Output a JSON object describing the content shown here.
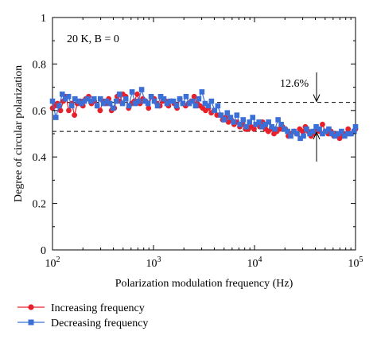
{
  "chart_data": {
    "type": "line",
    "title": "",
    "annotation_condition": "20 K, B = 0",
    "annotation_gap": "12.6%",
    "xlabel": "Polarization modulation frequency (Hz)",
    "ylabel": "Degree of circular polarization",
    "xscale": "log",
    "xlim": [
      100,
      100000
    ],
    "ylim": [
      0,
      1
    ],
    "x_ticks": [
      {
        "base": "10",
        "exp": "2",
        "value": 100
      },
      {
        "base": "10",
        "exp": "3",
        "value": 1000
      },
      {
        "base": "10",
        "exp": "4",
        "value": 10000
      },
      {
        "base": "10",
        "exp": "5",
        "value": 100000
      }
    ],
    "y_ticks": [
      "0",
      "0.2",
      "0.4",
      "0.6",
      "0.8",
      "1"
    ],
    "y_tick_values": [
      0,
      0.2,
      0.4,
      0.6,
      0.8,
      1
    ],
    "grid": false,
    "legend_position": "bottom-left, below plot",
    "reference_lines": [
      0.635,
      0.51
    ],
    "series": [
      {
        "name": "Increasing frequency",
        "color": "#e8202a",
        "marker": "circle",
        "x": [
          100,
          105,
          112,
          120,
          128,
          136,
          145,
          155,
          165,
          176,
          188,
          200,
          214,
          228,
          243,
          260,
          277,
          296,
          316,
          337,
          360,
          384,
          410,
          437,
          466,
          497,
          531,
          567,
          605,
          645,
          689,
          735,
          784,
          837,
          893,
          953,
          1017,
          1085,
          1158,
          1236,
          1319,
          1408,
          1502,
          1603,
          1711,
          1826,
          1948,
          2079,
          2219,
          2368,
          2527,
          2697,
          2878,
          3071,
          3277,
          3497,
          3732,
          3983,
          4250,
          4536,
          4840,
          5165,
          5512,
          5882,
          6277,
          6699,
          7149,
          7629,
          8141,
          8688,
          9272,
          9894,
          10559,
          11268,
          12024,
          12832,
          13693,
          14613,
          15594,
          16641,
          17759,
          18951,
          20224,
          21582,
          23031,
          24578,
          26228,
          27990,
          29869,
          31875,
          34015,
          36300,
          38737,
          41338,
          44114,
          47077,
          50238,
          53612,
          57212,
          61054,
          65154,
          69529,
          74198,
          79181,
          84498,
          90172,
          96228,
          100000
        ],
        "y": [
          0.61,
          0.62,
          0.63,
          0.6,
          0.64,
          0.66,
          0.6,
          0.63,
          0.58,
          0.63,
          0.64,
          0.62,
          0.65,
          0.66,
          0.63,
          0.64,
          0.62,
          0.6,
          0.64,
          0.63,
          0.65,
          0.6,
          0.61,
          0.66,
          0.64,
          0.67,
          0.66,
          0.61,
          0.63,
          0.64,
          0.67,
          0.63,
          0.65,
          0.64,
          0.61,
          0.66,
          0.65,
          0.63,
          0.62,
          0.64,
          0.64,
          0.62,
          0.64,
          0.63,
          0.61,
          0.65,
          0.63,
          0.62,
          0.63,
          0.64,
          0.66,
          0.63,
          0.62,
          0.61,
          0.6,
          0.61,
          0.59,
          0.6,
          0.58,
          0.58,
          0.56,
          0.57,
          0.55,
          0.56,
          0.54,
          0.55,
          0.53,
          0.54,
          0.52,
          0.52,
          0.53,
          0.52,
          0.54,
          0.53,
          0.55,
          0.52,
          0.51,
          0.52,
          0.5,
          0.51,
          0.52,
          0.53,
          0.52,
          0.49,
          0.5,
          0.51,
          0.5,
          0.52,
          0.51,
          0.53,
          0.51,
          0.49,
          0.5,
          0.52,
          0.51,
          0.54,
          0.51,
          0.5,
          0.51,
          0.49,
          0.5,
          0.48,
          0.49,
          0.5,
          0.52,
          0.5,
          0.51,
          0.52
        ]
      },
      {
        "name": "Decreasing frequency",
        "color": "#3b6fd8",
        "marker": "square",
        "x": [
          100,
          108,
          116,
          125,
          134,
          144,
          155,
          167,
          179,
          193,
          207,
          223,
          240,
          258,
          277,
          298,
          320,
          344,
          370,
          398,
          428,
          460,
          494,
          532,
          572,
          614,
          660,
          710,
          763,
          820,
          882,
          948,
          1019,
          1096,
          1178,
          1266,
          1361,
          1463,
          1573,
          1691,
          1818,
          1954,
          2101,
          2258,
          2428,
          2610,
          2806,
          3016,
          3242,
          3486,
          3747,
          4028,
          4330,
          4655,
          5004,
          5380,
          5783,
          6217,
          6683,
          7185,
          7724,
          8303,
          8926,
          9595,
          10315,
          11089,
          11920,
          12814,
          13775,
          14808,
          15919,
          17113,
          18397,
          19776,
          21260,
          22854,
          24568,
          26411,
          28392,
          30521,
          32810,
          35271,
          37916,
          40760,
          43817,
          47103,
          50636,
          54434,
          58516,
          62905,
          67623,
          72695,
          78147,
          84008,
          90309,
          97081,
          100000
        ],
        "y": [
          0.64,
          0.57,
          0.62,
          0.67,
          0.65,
          0.66,
          0.62,
          0.65,
          0.64,
          0.63,
          0.64,
          0.65,
          0.64,
          0.65,
          0.62,
          0.65,
          0.63,
          0.64,
          0.63,
          0.61,
          0.64,
          0.67,
          0.63,
          0.65,
          0.62,
          0.68,
          0.63,
          0.64,
          0.69,
          0.64,
          0.63,
          0.66,
          0.64,
          0.62,
          0.66,
          0.65,
          0.63,
          0.64,
          0.64,
          0.62,
          0.65,
          0.63,
          0.66,
          0.63,
          0.64,
          0.62,
          0.65,
          0.68,
          0.63,
          0.62,
          0.64,
          0.6,
          0.62,
          0.58,
          0.56,
          0.59,
          0.57,
          0.55,
          0.58,
          0.54,
          0.56,
          0.53,
          0.55,
          0.57,
          0.54,
          0.55,
          0.53,
          0.54,
          0.55,
          0.53,
          0.52,
          0.56,
          0.54,
          0.52,
          0.51,
          0.49,
          0.51,
          0.5,
          0.48,
          0.49,
          0.52,
          0.5,
          0.51,
          0.53,
          0.52,
          0.5,
          0.51,
          0.52,
          0.5,
          0.49,
          0.5,
          0.51,
          0.49,
          0.5,
          0.5,
          0.51,
          0.53
        ]
      }
    ]
  }
}
